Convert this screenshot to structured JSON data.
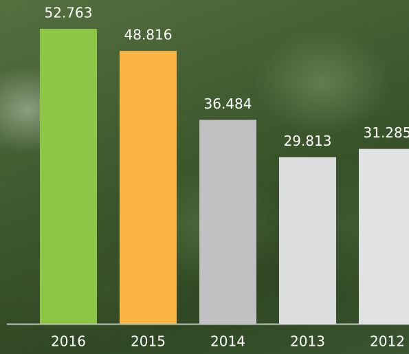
{
  "chart_data": {
    "type": "bar",
    "categories": [
      "2016",
      "2015",
      "2014",
      "2013",
      "2012"
    ],
    "values": [
      52.763,
      48.816,
      36.484,
      29.813,
      31.285
    ],
    "colors": [
      "#8dc545",
      "#fbb545",
      "#c1c1c3",
      "#dcdddf",
      "#e1e2e4"
    ]
  }
}
